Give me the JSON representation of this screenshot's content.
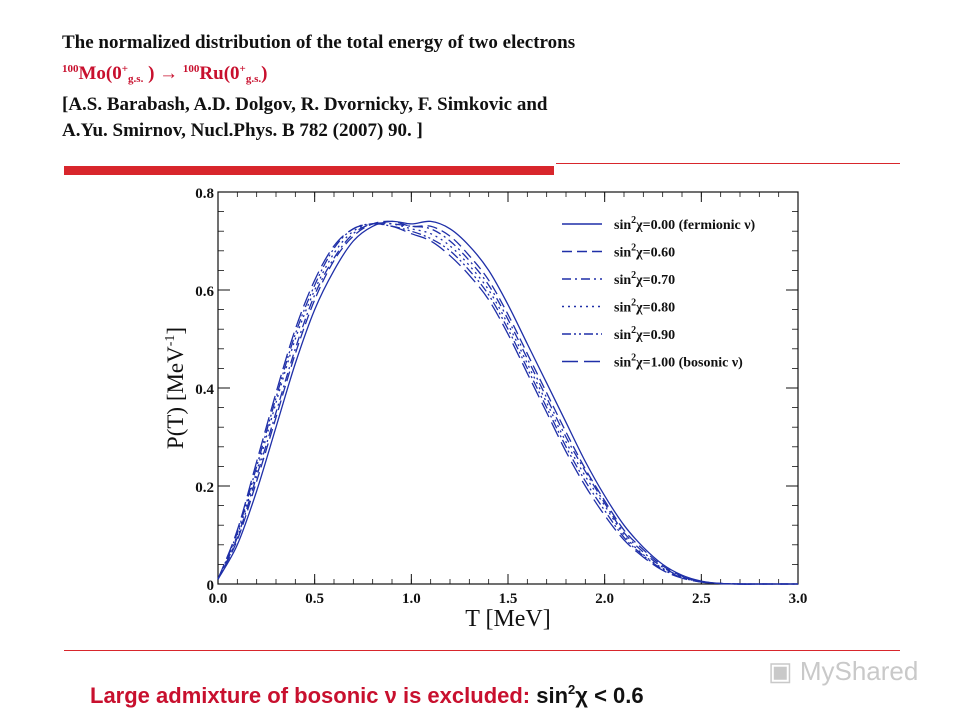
{
  "header": {
    "line1": "The normalized distribution of the total energy of two electrons",
    "reaction": {
      "parent_mass": "100",
      "parent": "Mo(0",
      "parent_sup": "+",
      "parent_sub": "g.s.",
      "parent_close": " )",
      "arrow": "→",
      "daughter_mass": "100",
      "daughter": "Ru(0",
      "daughter_sup": "+",
      "daughter_sub": "g.s.",
      "daughter_close": ")"
    },
    "ref1": "[A.S. Barabash, A.D. Dolgov, R. Dvornicky, F. Simkovic and",
    "ref2": " A.Yu. Smirnov, Nucl.Phys. B 782 (2007) 90. ]"
  },
  "chart_data": {
    "type": "line",
    "title": "",
    "xlabel": "T [MeV]",
    "ylabel": "P(T) [MeV-1]",
    "ylabel_parts": {
      "main": "P(T) [MeV",
      "sup": "-1",
      "close": "]"
    },
    "xlim": [
      0.0,
      3.0
    ],
    "ylim": [
      0.0,
      0.8
    ],
    "xticks": [
      0.0,
      0.5,
      1.0,
      1.5,
      2.0,
      2.5,
      3.0
    ],
    "xtick_labels": [
      "0.0",
      "0.5",
      "1.0",
      "1.5",
      "2.0",
      "2.5",
      "3.0"
    ],
    "yticks": [
      0.0,
      0.2,
      0.4,
      0.6,
      0.8
    ],
    "ytick_labels": [
      "0",
      "0.2",
      "0.4",
      "0.6",
      "0.8"
    ],
    "grid": false,
    "legend_position": "top-right",
    "x": [
      0.0,
      0.1,
      0.2,
      0.3,
      0.4,
      0.5,
      0.6,
      0.7,
      0.8,
      0.9,
      1.0,
      1.1,
      1.2,
      1.3,
      1.4,
      1.5,
      1.6,
      1.7,
      1.8,
      1.9,
      2.0,
      2.1,
      2.2,
      2.3,
      2.4,
      2.5,
      2.6,
      2.7,
      2.8,
      2.9,
      3.0
    ],
    "series": [
      {
        "name": "sin2χ=0.00 (fermionic ν)",
        "dash": "solid",
        "values": [
          0.01,
          0.08,
          0.19,
          0.32,
          0.45,
          0.56,
          0.64,
          0.7,
          0.73,
          0.74,
          0.735,
          0.74,
          0.725,
          0.69,
          0.64,
          0.57,
          0.49,
          0.41,
          0.33,
          0.25,
          0.18,
          0.12,
          0.075,
          0.04,
          0.018,
          0.006,
          0.001,
          0.0,
          0.0,
          0.0,
          0.0
        ]
      },
      {
        "name": "sin2χ=0.60",
        "dash": "dashed",
        "values": [
          0.01,
          0.09,
          0.21,
          0.34,
          0.47,
          0.58,
          0.66,
          0.71,
          0.735,
          0.74,
          0.73,
          0.73,
          0.71,
          0.67,
          0.62,
          0.55,
          0.47,
          0.39,
          0.31,
          0.235,
          0.17,
          0.11,
          0.07,
          0.037,
          0.016,
          0.005,
          0.001,
          0.0,
          0.0,
          0.0,
          0.0
        ]
      },
      {
        "name": "sin2χ=0.70",
        "dash": "dashdot",
        "values": [
          0.01,
          0.095,
          0.22,
          0.35,
          0.48,
          0.59,
          0.665,
          0.715,
          0.735,
          0.735,
          0.73,
          0.725,
          0.7,
          0.66,
          0.61,
          0.54,
          0.46,
          0.38,
          0.3,
          0.23,
          0.165,
          0.105,
          0.065,
          0.034,
          0.015,
          0.005,
          0.001,
          0.0,
          0.0,
          0.0,
          0.0
        ]
      },
      {
        "name": "sin2χ=0.80",
        "dash": "dotted",
        "values": [
          0.01,
          0.1,
          0.23,
          0.37,
          0.5,
          0.6,
          0.675,
          0.72,
          0.735,
          0.735,
          0.725,
          0.715,
          0.69,
          0.65,
          0.6,
          0.53,
          0.45,
          0.37,
          0.29,
          0.22,
          0.16,
          0.1,
          0.06,
          0.032,
          0.014,
          0.004,
          0.001,
          0.0,
          0.0,
          0.0,
          0.0
        ]
      },
      {
        "name": "sin2χ=0.90",
        "dash": "dashdotdot",
        "values": [
          0.01,
          0.105,
          0.24,
          0.38,
          0.51,
          0.61,
          0.685,
          0.725,
          0.735,
          0.73,
          0.72,
          0.705,
          0.68,
          0.64,
          0.59,
          0.52,
          0.44,
          0.36,
          0.28,
          0.21,
          0.15,
          0.095,
          0.058,
          0.03,
          0.013,
          0.004,
          0.001,
          0.0,
          0.0,
          0.0,
          0.0
        ]
      },
      {
        "name": "sin2χ=1.00 (bosonic ν)",
        "dash": "longdash",
        "values": [
          0.01,
          0.11,
          0.25,
          0.39,
          0.52,
          0.62,
          0.69,
          0.725,
          0.735,
          0.73,
          0.715,
          0.7,
          0.67,
          0.63,
          0.58,
          0.51,
          0.43,
          0.35,
          0.27,
          0.2,
          0.14,
          0.09,
          0.055,
          0.028,
          0.012,
          0.004,
          0.001,
          0.0,
          0.0,
          0.0,
          0.0
        ]
      }
    ],
    "legend_labels": [
      {
        "pre": "sin",
        "sup": "2",
        "chi": "χ",
        "post": "=0.00 (fermionic ",
        "nu": "ν",
        "close": ")"
      },
      {
        "pre": "sin",
        "sup": "2",
        "chi": "χ",
        "post": "=0.60",
        "nu": "",
        "close": ""
      },
      {
        "pre": "sin",
        "sup": "2",
        "chi": "χ",
        "post": "=0.70",
        "nu": "",
        "close": ""
      },
      {
        "pre": "sin",
        "sup": "2",
        "chi": "χ",
        "post": "=0.80",
        "nu": "",
        "close": ""
      },
      {
        "pre": "sin",
        "sup": "2",
        "chi": "χ",
        "post": "=0.90",
        "nu": "",
        "close": ""
      },
      {
        "pre": "sin",
        "sup": "2",
        "chi": "χ",
        "post": "=1.00 (bosonic ",
        "nu": "ν",
        "close": ")"
      }
    ],
    "line_color": "#1f2fa8"
  },
  "footer": {
    "part1": "Large admixture of bosonic ",
    "nu": "ν",
    "part2": " is excluded: ",
    "part3": "sin",
    "sup": "2",
    "chi": "χ",
    "part4": " < 0.6"
  },
  "watermark": "MyShared",
  "colors": {
    "accent_red": "#d8262c",
    "text_red": "#c8102e"
  }
}
